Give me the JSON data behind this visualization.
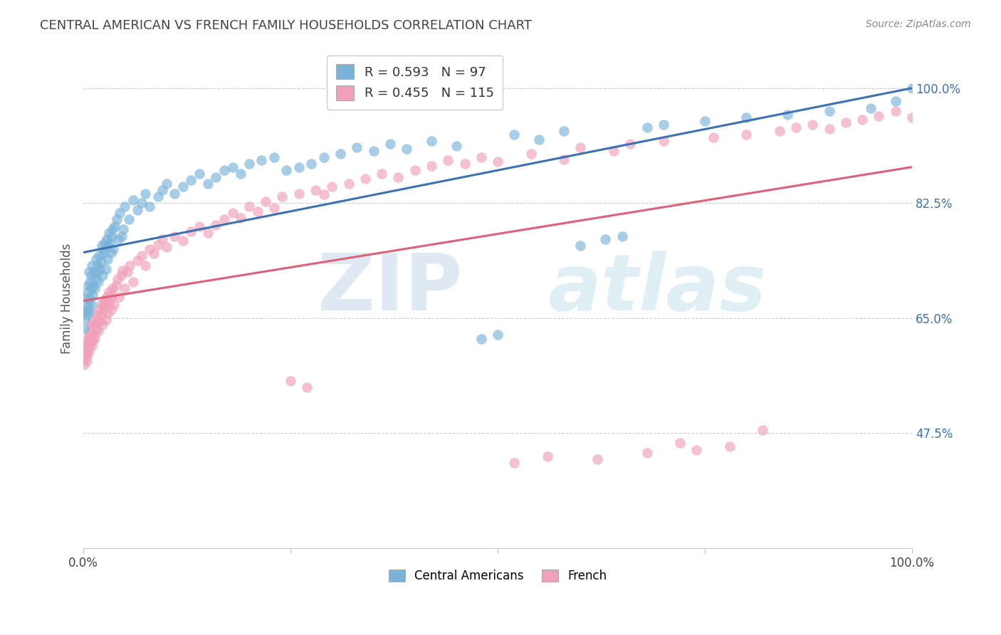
{
  "title": "CENTRAL AMERICAN VS FRENCH FAMILY HOUSEHOLDS CORRELATION CHART",
  "source": "Source: ZipAtlas.com",
  "ylabel": "Family Households",
  "ytick_labels": [
    "100.0%",
    "82.5%",
    "65.0%",
    "47.5%"
  ],
  "ytick_values": [
    1.0,
    0.825,
    0.65,
    0.475
  ],
  "xlim": [
    0.0,
    1.0
  ],
  "ylim": [
    0.3,
    1.06
  ],
  "legend_label_bottom": [
    "Central Americans",
    "French"
  ],
  "blue_color": "#7ab3d9",
  "pink_color": "#f0a0b8",
  "blue_line_color": "#3a72b5",
  "pink_line_color": "#e0607a",
  "blue_scatter": [
    [
      0.001,
      0.635
    ],
    [
      0.002,
      0.65
    ],
    [
      0.003,
      0.66
    ],
    [
      0.003,
      0.68
    ],
    [
      0.004,
      0.655
    ],
    [
      0.005,
      0.665
    ],
    [
      0.005,
      0.69
    ],
    [
      0.006,
      0.67
    ],
    [
      0.006,
      0.7
    ],
    [
      0.007,
      0.66
    ],
    [
      0.007,
      0.72
    ],
    [
      0.008,
      0.68
    ],
    [
      0.008,
      0.705
    ],
    [
      0.009,
      0.695
    ],
    [
      0.009,
      0.715
    ],
    [
      0.01,
      0.67
    ],
    [
      0.01,
      0.73
    ],
    [
      0.011,
      0.685
    ],
    [
      0.012,
      0.7
    ],
    [
      0.013,
      0.72
    ],
    [
      0.014,
      0.695
    ],
    [
      0.015,
      0.71
    ],
    [
      0.015,
      0.74
    ],
    [
      0.016,
      0.72
    ],
    [
      0.017,
      0.73
    ],
    [
      0.018,
      0.705
    ],
    [
      0.019,
      0.745
    ],
    [
      0.02,
      0.725
    ],
    [
      0.021,
      0.735
    ],
    [
      0.022,
      0.76
    ],
    [
      0.023,
      0.715
    ],
    [
      0.024,
      0.748
    ],
    [
      0.025,
      0.755
    ],
    [
      0.026,
      0.765
    ],
    [
      0.027,
      0.725
    ],
    [
      0.028,
      0.77
    ],
    [
      0.029,
      0.74
    ],
    [
      0.03,
      0.76
    ],
    [
      0.031,
      0.78
    ],
    [
      0.032,
      0.765
    ],
    [
      0.033,
      0.75
    ],
    [
      0.034,
      0.775
    ],
    [
      0.035,
      0.785
    ],
    [
      0.036,
      0.755
    ],
    [
      0.038,
      0.79
    ],
    [
      0.04,
      0.8
    ],
    [
      0.042,
      0.77
    ],
    [
      0.044,
      0.81
    ],
    [
      0.046,
      0.775
    ],
    [
      0.048,
      0.785
    ],
    [
      0.05,
      0.82
    ],
    [
      0.055,
      0.8
    ],
    [
      0.06,
      0.83
    ],
    [
      0.065,
      0.815
    ],
    [
      0.07,
      0.825
    ],
    [
      0.075,
      0.84
    ],
    [
      0.08,
      0.82
    ],
    [
      0.09,
      0.835
    ],
    [
      0.095,
      0.845
    ],
    [
      0.1,
      0.855
    ],
    [
      0.11,
      0.84
    ],
    [
      0.12,
      0.85
    ],
    [
      0.13,
      0.86
    ],
    [
      0.14,
      0.87
    ],
    [
      0.15,
      0.855
    ],
    [
      0.16,
      0.865
    ],
    [
      0.17,
      0.875
    ],
    [
      0.18,
      0.88
    ],
    [
      0.19,
      0.87
    ],
    [
      0.2,
      0.885
    ],
    [
      0.215,
      0.89
    ],
    [
      0.23,
      0.895
    ],
    [
      0.245,
      0.875
    ],
    [
      0.26,
      0.88
    ],
    [
      0.275,
      0.885
    ],
    [
      0.29,
      0.895
    ],
    [
      0.31,
      0.9
    ],
    [
      0.33,
      0.91
    ],
    [
      0.35,
      0.905
    ],
    [
      0.37,
      0.915
    ],
    [
      0.39,
      0.908
    ],
    [
      0.42,
      0.92
    ],
    [
      0.45,
      0.912
    ],
    [
      0.48,
      0.618
    ],
    [
      0.5,
      0.625
    ],
    [
      0.52,
      0.93
    ],
    [
      0.55,
      0.922
    ],
    [
      0.58,
      0.935
    ],
    [
      0.6,
      0.76
    ],
    [
      0.63,
      0.77
    ],
    [
      0.65,
      0.775
    ],
    [
      0.68,
      0.94
    ],
    [
      0.7,
      0.945
    ],
    [
      0.75,
      0.95
    ],
    [
      0.8,
      0.955
    ],
    [
      0.85,
      0.96
    ],
    [
      0.9,
      0.965
    ],
    [
      0.95,
      0.97
    ],
    [
      0.98,
      0.98
    ],
    [
      1.0,
      1.0
    ]
  ],
  "pink_scatter": [
    [
      0.001,
      0.58
    ],
    [
      0.002,
      0.59
    ],
    [
      0.003,
      0.6
    ],
    [
      0.003,
      0.615
    ],
    [
      0.004,
      0.585
    ],
    [
      0.005,
      0.595
    ],
    [
      0.005,
      0.61
    ],
    [
      0.006,
      0.605
    ],
    [
      0.006,
      0.62
    ],
    [
      0.007,
      0.6
    ],
    [
      0.007,
      0.625
    ],
    [
      0.008,
      0.61
    ],
    [
      0.008,
      0.63
    ],
    [
      0.009,
      0.618
    ],
    [
      0.009,
      0.638
    ],
    [
      0.01,
      0.608
    ],
    [
      0.01,
      0.645
    ],
    [
      0.011,
      0.615
    ],
    [
      0.012,
      0.625
    ],
    [
      0.013,
      0.64
    ],
    [
      0.014,
      0.62
    ],
    [
      0.015,
      0.633
    ],
    [
      0.015,
      0.655
    ],
    [
      0.016,
      0.643
    ],
    [
      0.017,
      0.65
    ],
    [
      0.018,
      0.63
    ],
    [
      0.019,
      0.662
    ],
    [
      0.02,
      0.645
    ],
    [
      0.021,
      0.655
    ],
    [
      0.022,
      0.672
    ],
    [
      0.023,
      0.64
    ],
    [
      0.024,
      0.665
    ],
    [
      0.025,
      0.67
    ],
    [
      0.026,
      0.678
    ],
    [
      0.027,
      0.648
    ],
    [
      0.028,
      0.682
    ],
    [
      0.029,
      0.658
    ],
    [
      0.03,
      0.673
    ],
    [
      0.031,
      0.69
    ],
    [
      0.032,
      0.677
    ],
    [
      0.033,
      0.663
    ],
    [
      0.034,
      0.685
    ],
    [
      0.035,
      0.695
    ],
    [
      0.037,
      0.67
    ],
    [
      0.039,
      0.7
    ],
    [
      0.041,
      0.71
    ],
    [
      0.043,
      0.682
    ],
    [
      0.045,
      0.715
    ],
    [
      0.047,
      0.722
    ],
    [
      0.05,
      0.695
    ],
    [
      0.053,
      0.72
    ],
    [
      0.056,
      0.73
    ],
    [
      0.06,
      0.705
    ],
    [
      0.065,
      0.738
    ],
    [
      0.07,
      0.745
    ],
    [
      0.075,
      0.73
    ],
    [
      0.08,
      0.755
    ],
    [
      0.085,
      0.748
    ],
    [
      0.09,
      0.762
    ],
    [
      0.095,
      0.77
    ],
    [
      0.1,
      0.758
    ],
    [
      0.11,
      0.775
    ],
    [
      0.12,
      0.768
    ],
    [
      0.13,
      0.782
    ],
    [
      0.14,
      0.79
    ],
    [
      0.15,
      0.78
    ],
    [
      0.16,
      0.792
    ],
    [
      0.17,
      0.8
    ],
    [
      0.18,
      0.81
    ],
    [
      0.19,
      0.803
    ],
    [
      0.2,
      0.82
    ],
    [
      0.21,
      0.812
    ],
    [
      0.22,
      0.828
    ],
    [
      0.23,
      0.818
    ],
    [
      0.24,
      0.835
    ],
    [
      0.25,
      0.555
    ],
    [
      0.26,
      0.84
    ],
    [
      0.27,
      0.545
    ],
    [
      0.28,
      0.845
    ],
    [
      0.29,
      0.838
    ],
    [
      0.3,
      0.85
    ],
    [
      0.32,
      0.855
    ],
    [
      0.34,
      0.862
    ],
    [
      0.36,
      0.87
    ],
    [
      0.38,
      0.865
    ],
    [
      0.4,
      0.875
    ],
    [
      0.42,
      0.882
    ],
    [
      0.44,
      0.89
    ],
    [
      0.46,
      0.885
    ],
    [
      0.48,
      0.895
    ],
    [
      0.5,
      0.888
    ],
    [
      0.52,
      0.43
    ],
    [
      0.54,
      0.9
    ],
    [
      0.56,
      0.44
    ],
    [
      0.58,
      0.892
    ],
    [
      0.6,
      0.91
    ],
    [
      0.62,
      0.435
    ],
    [
      0.64,
      0.905
    ],
    [
      0.66,
      0.915
    ],
    [
      0.68,
      0.445
    ],
    [
      0.7,
      0.92
    ],
    [
      0.72,
      0.46
    ],
    [
      0.74,
      0.45
    ],
    [
      0.76,
      0.925
    ],
    [
      0.78,
      0.455
    ],
    [
      0.8,
      0.93
    ],
    [
      0.82,
      0.48
    ],
    [
      0.84,
      0.935
    ],
    [
      0.86,
      0.94
    ],
    [
      0.88,
      0.945
    ],
    [
      0.9,
      0.938
    ],
    [
      0.92,
      0.948
    ],
    [
      0.94,
      0.952
    ],
    [
      0.96,
      0.958
    ],
    [
      0.98,
      0.965
    ],
    [
      1.0,
      0.955
    ]
  ]
}
